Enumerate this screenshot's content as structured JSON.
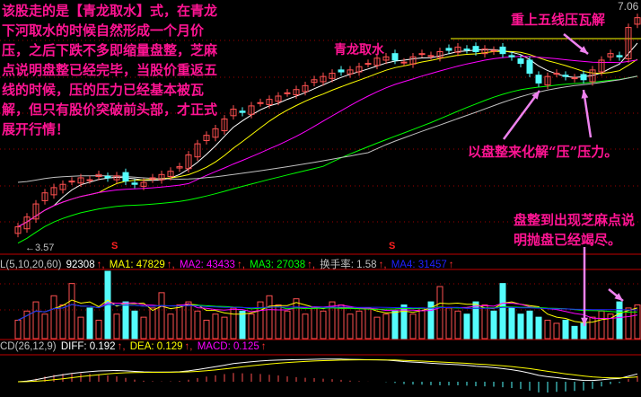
{
  "chart_data": {
    "type": "candlestick",
    "price_range": [
      3.57,
      7.06
    ],
    "low_label": "3.57",
    "high_label": "7.06",
    "closes": [
      3.7,
      3.85,
      4.05,
      4.22,
      4.3,
      4.35,
      4.4,
      4.45,
      4.42,
      4.5,
      4.45,
      4.48,
      4.4,
      4.35,
      4.38,
      4.45,
      4.5,
      4.55,
      4.62,
      4.8,
      4.97,
      5.1,
      5.2,
      5.35,
      5.5,
      5.45,
      5.55,
      5.6,
      5.65,
      5.7,
      5.75,
      5.8,
      5.86,
      5.95,
      6.0,
      6.05,
      6.07,
      6.1,
      6.15,
      6.2,
      6.28,
      6.3,
      6.25,
      6.22,
      6.3,
      6.35,
      6.32,
      6.38,
      6.4,
      6.45,
      6.41,
      6.38,
      6.42,
      6.4,
      6.35,
      6.3,
      6.2,
      6.05,
      5.9,
      6.0,
      6.05,
      6.0,
      5.98,
      5.95,
      6.1,
      6.25,
      6.35,
      6.3,
      6.75,
      6.9
    ],
    "volumes": [
      30,
      45,
      60,
      40,
      70,
      55,
      90,
      35,
      50,
      30,
      110,
      40,
      60,
      45,
      35,
      50,
      75,
      40,
      55,
      60,
      45,
      30,
      40,
      35,
      50,
      45,
      40,
      60,
      70,
      55,
      45,
      65,
      40,
      50,
      45,
      60,
      55,
      40,
      45,
      50,
      35,
      40,
      45,
      55,
      40,
      50,
      60,
      85,
      50,
      45,
      40,
      60,
      55,
      45,
      90,
      50,
      40,
      45,
      35,
      30,
      25,
      30,
      20,
      25,
      35,
      45,
      40,
      60,
      50,
      55
    ],
    "price_ma_colors": {
      "ma5": "#ffffff",
      "ma10": "#ffff00",
      "ma20": "#ff00ff",
      "ma60": "#00ff00",
      "ma120": "#c0c0c0"
    },
    "up_color": "#ff5050",
    "down_color": "#54fcfc",
    "resistance_line_color": "#ffff00",
    "signal_markers": [
      "S",
      "S"
    ]
  },
  "annotations": {
    "main_text": [
      "该股走的是【青龙取水】式，在青龙",
      "下河取水的时候自然形成一个月价",
      "压，之后下跌不多即缩量盘整，芝麻",
      "点说明盘整已经完毕，当股价重返五",
      "线的时候，压的压力已经基本被瓦",
      "解，但只有股价突破前头部，才正式",
      "展开行情！"
    ],
    "pattern_label": "青龙取水",
    "resistance_note": "重上五线压瓦解",
    "consolidation_note": "以盘整来化解“压”压力。",
    "sesame_note": [
      "盘整到出现芝麻点说",
      "明抛盘已经竭尽。"
    ],
    "color": "#ff1493",
    "arrow_color": "#ee82ee"
  },
  "volume_header": {
    "name": "L(5,10,20,60)",
    "value": "92308",
    "ma1": "MA1: 47829",
    "ma2": "MA2: 43433",
    "ma3": "MA3: 27038",
    "turnover": "换手率: 1.58",
    "ma4": "MA4: 31457",
    "arrow": "↑,"
  },
  "macd_header": {
    "name": "CD(26,12,9)",
    "diff": "DIFF: 0.192",
    "dea": "DEA: 0.129",
    "macd": "MACD: 0.125",
    "arrow": "↑,"
  },
  "low_arrow": "←3.57",
  "signal_marker": "S"
}
